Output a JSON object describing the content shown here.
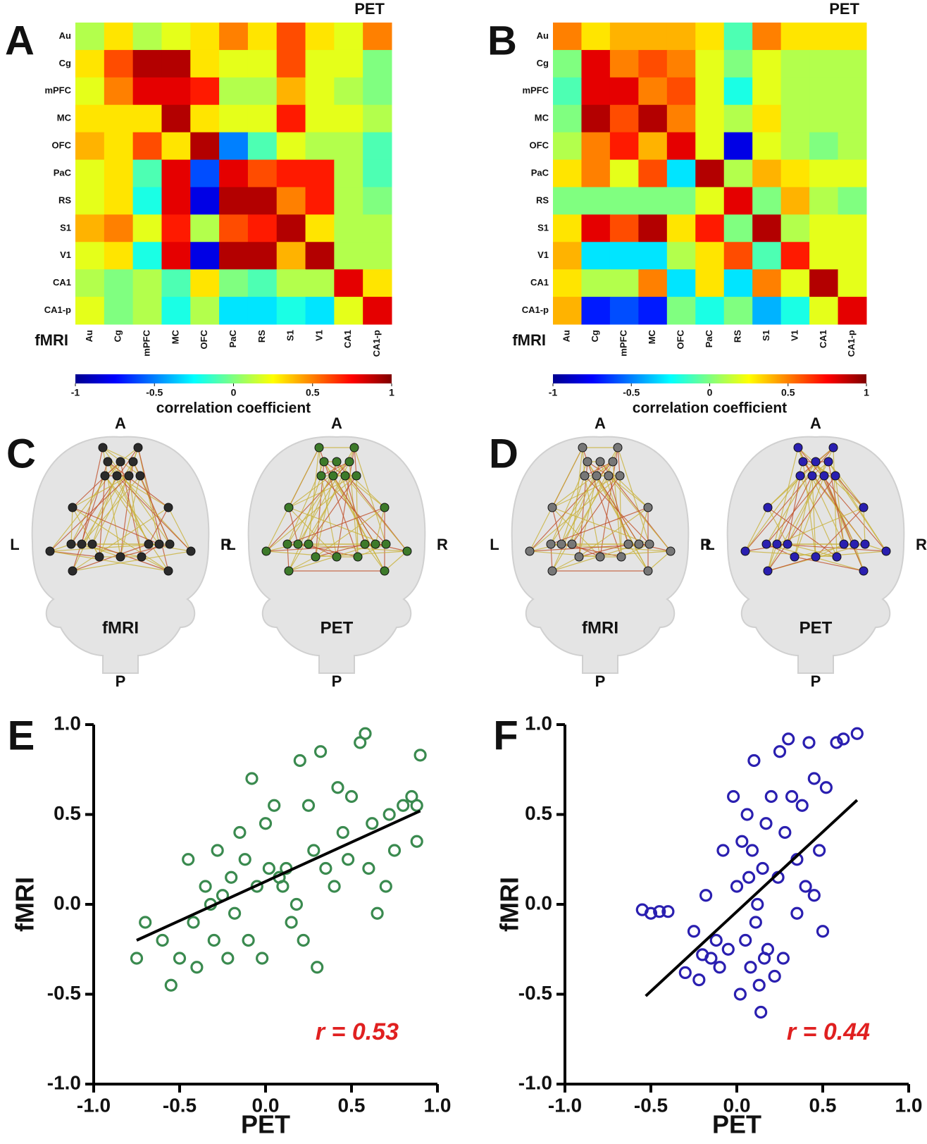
{
  "chart_data": [
    {
      "type": "heatmap",
      "panel": "A",
      "upper_label": "PET",
      "lower_label": "fMRI",
      "categories": [
        "Au",
        "Cg",
        "mPFC",
        "MC",
        "OFC",
        "PaC",
        "RS",
        "S1",
        "V1",
        "CA1",
        "CA1-p"
      ],
      "values": [
        [
          0.1,
          0.3,
          0.1,
          0.2,
          0.3,
          0.5,
          0.3,
          0.6,
          0.3,
          0.2,
          0.5
        ],
        [
          0.3,
          0.6,
          0.9,
          0.9,
          0.3,
          0.2,
          0.2,
          0.6,
          0.2,
          0.2,
          0.0
        ],
        [
          0.2,
          0.5,
          0.8,
          0.8,
          0.7,
          0.1,
          0.1,
          0.4,
          0.2,
          0.1,
          0.0
        ],
        [
          0.3,
          0.3,
          0.3,
          0.9,
          0.3,
          0.2,
          0.2,
          0.7,
          0.2,
          0.2,
          0.1
        ],
        [
          0.4,
          0.3,
          0.6,
          0.3,
          0.9,
          -0.5,
          -0.1,
          0.2,
          0.1,
          0.1,
          -0.1
        ],
        [
          0.2,
          0.3,
          -0.1,
          0.8,
          -0.6,
          0.8,
          0.6,
          0.7,
          0.7,
          0.1,
          -0.1
        ],
        [
          0.2,
          0.3,
          -0.2,
          0.8,
          -0.8,
          0.9,
          0.9,
          0.5,
          0.7,
          0.1,
          0.0
        ],
        [
          0.4,
          0.5,
          0.2,
          0.7,
          0.1,
          0.6,
          0.7,
          0.9,
          0.3,
          0.1,
          0.1
        ],
        [
          0.2,
          0.3,
          -0.2,
          0.8,
          -0.8,
          0.9,
          0.9,
          0.4,
          0.9,
          0.1,
          0.1
        ],
        [
          0.1,
          0.0,
          0.1,
          -0.1,
          0.3,
          0.0,
          -0.1,
          0.1,
          0.1,
          0.8,
          0.3
        ],
        [
          0.2,
          0.0,
          0.1,
          -0.2,
          0.1,
          -0.3,
          -0.3,
          -0.2,
          -0.3,
          0.2,
          0.8
        ]
      ],
      "clim": [
        -1,
        1
      ],
      "cticks": [
        -1,
        -0.5,
        0,
        0.5,
        1
      ],
      "colormap": "jet",
      "colorbar_label": "correlation coefficient"
    },
    {
      "type": "heatmap",
      "panel": "B",
      "upper_label": "PET",
      "lower_label": "fMRI",
      "categories": [
        "Au",
        "Cg",
        "mPFC",
        "MC",
        "OFC",
        "PaC",
        "RS",
        "S1",
        "V1",
        "CA1",
        "CA1-p"
      ],
      "values": [
        [
          0.5,
          0.3,
          0.4,
          0.4,
          0.4,
          0.3,
          -0.1,
          0.5,
          0.3,
          0.3,
          0.3
        ],
        [
          0.0,
          0.8,
          0.5,
          0.6,
          0.5,
          0.2,
          0.0,
          0.2,
          0.1,
          0.1,
          0.1
        ],
        [
          -0.1,
          0.8,
          0.8,
          0.5,
          0.6,
          0.2,
          -0.2,
          0.2,
          0.1,
          0.1,
          0.1
        ],
        [
          0.0,
          0.9,
          0.6,
          0.9,
          0.5,
          0.2,
          0.1,
          0.3,
          0.1,
          0.1,
          0.1
        ],
        [
          0.1,
          0.5,
          0.7,
          0.4,
          0.8,
          0.2,
          -0.8,
          0.2,
          0.1,
          0.0,
          0.1
        ],
        [
          0.3,
          0.5,
          0.2,
          0.6,
          -0.3,
          0.9,
          0.1,
          0.4,
          0.3,
          0.2,
          0.2
        ],
        [
          0.0,
          0.0,
          0.0,
          0.0,
          0.0,
          0.2,
          0.8,
          0.0,
          0.4,
          0.1,
          0.0
        ],
        [
          0.3,
          0.8,
          0.6,
          0.9,
          0.3,
          0.7,
          0.0,
          0.9,
          0.1,
          0.2,
          0.2
        ],
        [
          0.4,
          -0.3,
          -0.3,
          -0.3,
          0.1,
          0.3,
          0.6,
          -0.1,
          0.7,
          0.2,
          0.2
        ],
        [
          0.3,
          0.1,
          0.1,
          0.5,
          -0.3,
          0.3,
          -0.3,
          0.5,
          0.2,
          0.9,
          0.2
        ],
        [
          0.4,
          -0.7,
          -0.6,
          -0.7,
          0.0,
          -0.2,
          0.0,
          -0.4,
          -0.2,
          0.2,
          0.8
        ]
      ],
      "clim": [
        -1,
        1
      ],
      "cticks": [
        -1,
        -0.5,
        0,
        0.5,
        1
      ],
      "colormap": "jet",
      "colorbar_label": "correlation coefficient"
    },
    {
      "type": "scatter",
      "panel": "E",
      "xlabel": "PET",
      "ylabel": "fMRI",
      "color": "#3a8a4f",
      "x": [
        -0.75,
        -0.7,
        -0.6,
        -0.55,
        -0.5,
        -0.45,
        -0.42,
        -0.4,
        -0.35,
        -0.32,
        -0.3,
        -0.28,
        -0.25,
        -0.22,
        -0.2,
        -0.18,
        -0.15,
        -0.12,
        -0.1,
        -0.08,
        -0.05,
        -0.02,
        0,
        0.02,
        0.05,
        0.08,
        0.1,
        0.12,
        0.15,
        0.18,
        0.2,
        0.22,
        0.25,
        0.28,
        0.3,
        0.32,
        0.35,
        0.4,
        0.42,
        0.45,
        0.48,
        0.5,
        0.55,
        0.58,
        0.6,
        0.62,
        0.65,
        0.7,
        0.72,
        0.75,
        0.8,
        0.85,
        0.88,
        0.9,
        0.88
      ],
      "y": [
        -0.3,
        -0.1,
        -0.2,
        -0.45,
        -0.3,
        0.25,
        -0.1,
        -0.35,
        0.1,
        0.0,
        -0.2,
        0.3,
        0.05,
        -0.3,
        0.15,
        -0.05,
        0.4,
        0.25,
        -0.2,
        0.7,
        0.1,
        -0.3,
        0.45,
        0.2,
        0.55,
        0.15,
        0.1,
        0.2,
        -0.1,
        0.0,
        0.8,
        -0.2,
        0.55,
        0.3,
        -0.35,
        0.85,
        0.2,
        0.1,
        0.65,
        0.4,
        0.25,
        0.6,
        0.9,
        0.95,
        0.2,
        0.45,
        -0.05,
        0.1,
        0.5,
        0.3,
        0.55,
        0.6,
        0.35,
        0.83,
        0.55
      ],
      "fit_line": {
        "x": [
          -0.75,
          0.9
        ],
        "y": [
          -0.2,
          0.52
        ]
      },
      "annotation": "r = 0.53",
      "annotation_color": "#e02020",
      "xlim": [
        -1,
        1
      ],
      "ylim": [
        -1,
        1
      ],
      "xticks": [
        {
          "value": -1,
          "label": "-1.0"
        },
        -0.5,
        {
          "value": 0,
          "label": "0.0"
        },
        0.5,
        {
          "value": 1,
          "label": "1.0"
        }
      ],
      "yticks": [
        {
          "value": -1,
          "label": "-1.0"
        },
        -0.5,
        {
          "value": 0,
          "label": "0.0"
        },
        0.5,
        {
          "value": 1,
          "label": "1.0"
        }
      ]
    },
    {
      "type": "scatter",
      "panel": "F",
      "xlabel": "PET",
      "ylabel": "fMRI",
      "color": "#2a1fb0",
      "x": [
        -0.55,
        -0.5,
        -0.45,
        -0.4,
        -0.3,
        -0.25,
        -0.22,
        -0.2,
        -0.18,
        -0.15,
        -0.12,
        -0.1,
        -0.08,
        -0.05,
        -0.02,
        0,
        0.02,
        0.03,
        0.05,
        0.06,
        0.07,
        0.08,
        0.09,
        0.1,
        0.11,
        0.12,
        0.13,
        0.14,
        0.15,
        0.16,
        0.17,
        0.18,
        0.2,
        0.22,
        0.24,
        0.25,
        0.27,
        0.28,
        0.3,
        0.32,
        0.35,
        0.38,
        0.4,
        0.42,
        0.45,
        0.48,
        0.5,
        0.52,
        0.58,
        0.62,
        0.7,
        0.35,
        0.45
      ],
      "y": [
        -0.03,
        -0.05,
        -0.04,
        -0.04,
        -0.38,
        -0.15,
        -0.42,
        -0.28,
        0.05,
        -0.3,
        -0.2,
        -0.35,
        0.3,
        -0.25,
        0.6,
        0.1,
        -0.5,
        0.35,
        -0.2,
        0.5,
        0.15,
        -0.35,
        0.3,
        0.8,
        -0.1,
        0.0,
        -0.45,
        -0.6,
        0.2,
        -0.3,
        0.45,
        -0.25,
        0.6,
        -0.4,
        0.15,
        0.85,
        -0.3,
        0.4,
        0.92,
        0.6,
        -0.05,
        0.55,
        0.1,
        0.9,
        0.05,
        0.3,
        -0.15,
        0.65,
        0.9,
        0.92,
        0.95,
        0.25,
        0.7
      ],
      "fit_line": {
        "x": [
          -0.53,
          0.7
        ],
        "y": [
          -0.51,
          0.58
        ]
      },
      "annotation": "r = 0.44",
      "annotation_color": "#e02020",
      "xlim": [
        -1,
        1
      ],
      "ylim": [
        -1,
        1
      ],
      "xticks": [
        {
          "value": -1,
          "label": "-1.0"
        },
        -0.5,
        {
          "value": 0,
          "label": "0.0"
        },
        0.5,
        {
          "value": 1,
          "label": "1.0"
        }
      ],
      "yticks": [
        {
          "value": -1,
          "label": "-1.0"
        },
        -0.5,
        {
          "value": 0,
          "label": "0.0"
        },
        0.5,
        {
          "value": 1,
          "label": "1.0"
        }
      ]
    }
  ],
  "diagrams": [
    {
      "panel": "C",
      "anterior": "A",
      "posterior": "P",
      "left": "L",
      "right": "R",
      "views": [
        {
          "label": "fMRI",
          "node_color": "#2b2b2b"
        },
        {
          "label": "PET",
          "node_color": "#3d7a2a"
        }
      ]
    },
    {
      "panel": "D",
      "anterior": "A",
      "posterior": "P",
      "left": "L",
      "right": "R",
      "views": [
        {
          "label": "fMRI",
          "node_color": "#777777"
        },
        {
          "label": "PET",
          "node_color": "#2a1fb0"
        }
      ]
    }
  ]
}
